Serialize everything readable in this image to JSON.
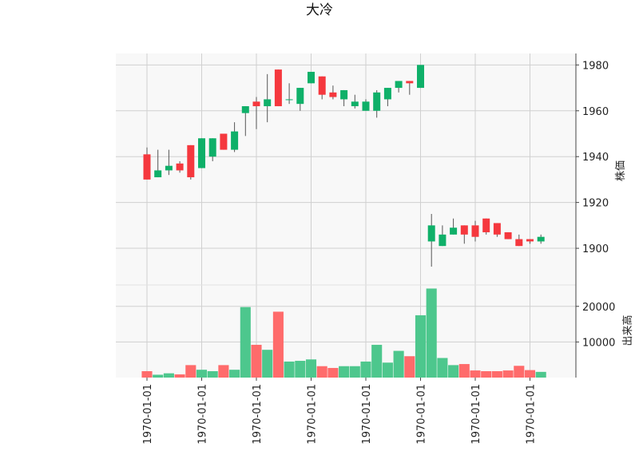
{
  "chart_data": {
    "type": "candlestick",
    "title": "大冷",
    "price_ylabel": "株価",
    "volume_ylabel": "出来高",
    "price_ticks": [
      1900,
      1920,
      1940,
      1960,
      1980
    ],
    "price_ylim": [
      1884,
      1985
    ],
    "volume_ticks": [
      10000,
      20000
    ],
    "volume_ylim": [
      0,
      26000
    ],
    "x_tick_labels": [
      "1970-01-01",
      "1970-01-01",
      "1970-01-01",
      "1970-01-01",
      "1970-01-01",
      "1970-01-01",
      "1970-01-01",
      "1970-01-01"
    ],
    "x_tick_indices": [
      0,
      5,
      10,
      15,
      20,
      25,
      30,
      35
    ],
    "up_color": "#0fb069",
    "down_color": "#f5383e",
    "up_volume_color": "#4dc78d",
    "down_volume_color": "#ff6b6b",
    "grid": true,
    "candles": [
      {
        "o": 1941,
        "h": 1944,
        "l": 1930,
        "c": 1930,
        "v": 1800
      },
      {
        "o": 1931,
        "h": 1943,
        "l": 1931,
        "c": 1934,
        "v": 800
      },
      {
        "o": 1934,
        "h": 1943,
        "l": 1932,
        "c": 1936,
        "v": 1200
      },
      {
        "o": 1937,
        "h": 1938,
        "l": 1933,
        "c": 1934,
        "v": 900
      },
      {
        "o": 1945,
        "h": 1945,
        "l": 1930,
        "c": 1931,
        "v": 3500
      },
      {
        "o": 1935,
        "h": 1948,
        "l": 1935,
        "c": 1948,
        "v": 2200
      },
      {
        "o": 1940,
        "h": 1948,
        "l": 1938,
        "c": 1948,
        "v": 1800
      },
      {
        "o": 1950,
        "h": 1950,
        "l": 1943,
        "c": 1943,
        "v": 3500
      },
      {
        "o": 1943,
        "h": 1955,
        "l": 1942,
        "c": 1951,
        "v": 2200
      },
      {
        "o": 1959,
        "h": 1962,
        "l": 1949,
        "c": 1962,
        "v": 19800
      },
      {
        "o": 1964,
        "h": 1966,
        "l": 1952,
        "c": 1962,
        "v": 9200
      },
      {
        "o": 1962,
        "h": 1976,
        "l": 1955,
        "c": 1965,
        "v": 7800
      },
      {
        "o": 1978,
        "h": 1978,
        "l": 1962,
        "c": 1962,
        "v": 18500
      },
      {
        "o": 1965,
        "h": 1972,
        "l": 1963,
        "c": 1965,
        "v": 4500
      },
      {
        "o": 1963,
        "h": 1970,
        "l": 1960,
        "c": 1970,
        "v": 4700
      },
      {
        "o": 1972,
        "h": 1977,
        "l": 1972,
        "c": 1977,
        "v": 5100
      },
      {
        "o": 1975,
        "h": 1975,
        "l": 1965,
        "c": 1967,
        "v": 3200
      },
      {
        "o": 1968,
        "h": 1971,
        "l": 1965,
        "c": 1966,
        "v": 2700
      },
      {
        "o": 1965,
        "h": 1969,
        "l": 1962,
        "c": 1969,
        "v": 3200
      },
      {
        "o": 1962,
        "h": 1967,
        "l": 1961,
        "c": 1964,
        "v": 3200
      },
      {
        "o": 1960,
        "h": 1965,
        "l": 1960,
        "c": 1964,
        "v": 4500
      },
      {
        "o": 1960,
        "h": 1969,
        "l": 1957,
        "c": 1968,
        "v": 9200
      },
      {
        "o": 1965,
        "h": 1970,
        "l": 1962,
        "c": 1970,
        "v": 4200
      },
      {
        "o": 1970,
        "h": 1973,
        "l": 1968,
        "c": 1973,
        "v": 7500
      },
      {
        "o": 1973,
        "h": 1973,
        "l": 1967,
        "c": 1972,
        "v": 6000
      },
      {
        "o": 1970,
        "h": 1980,
        "l": 1970,
        "c": 1980,
        "v": 17500
      },
      {
        "o": 1903,
        "h": 1915,
        "l": 1892,
        "c": 1910,
        "v": 25000
      },
      {
        "o": 1901,
        "h": 1910,
        "l": 1901,
        "c": 1906,
        "v": 5500
      },
      {
        "o": 1906,
        "h": 1913,
        "l": 1906,
        "c": 1909,
        "v": 3500
      },
      {
        "o": 1910,
        "h": 1910,
        "l": 1902,
        "c": 1906,
        "v": 3800
      },
      {
        "o": 1910,
        "h": 1912,
        "l": 1903,
        "c": 1905,
        "v": 2000
      },
      {
        "o": 1913,
        "h": 1913,
        "l": 1906,
        "c": 1907,
        "v": 1800
      },
      {
        "o": 1911,
        "h": 1911,
        "l": 1905,
        "c": 1906,
        "v": 1800
      },
      {
        "o": 1907,
        "h": 1907,
        "l": 1904,
        "c": 1904,
        "v": 2000
      },
      {
        "o": 1904,
        "h": 1906,
        "l": 1901,
        "c": 1901,
        "v": 3300
      },
      {
        "o": 1904,
        "h": 1904,
        "l": 1902,
        "c": 1903,
        "v": 2100
      },
      {
        "o": 1903,
        "h": 1906,
        "l": 1902,
        "c": 1905,
        "v": 1600
      }
    ]
  }
}
